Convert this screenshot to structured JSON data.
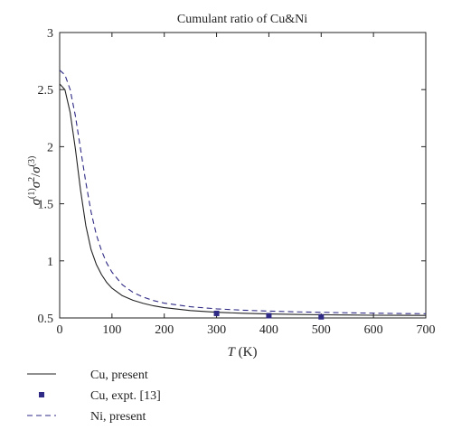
{
  "chart_data": {
    "type": "line",
    "title": "Cumulant ratio of Cu&Ni",
    "xlabel_italic": "T",
    "xlabel_unit": " (K)",
    "xlim": [
      0,
      700
    ],
    "ylim": [
      0.5,
      3
    ],
    "x_ticks": [
      0,
      100,
      200,
      300,
      400,
      500,
      600,
      700
    ],
    "y_ticks": [
      0.5,
      1,
      1.5,
      2,
      2.5,
      3
    ],
    "x_tick_labels": [
      "0",
      "100",
      "200",
      "300",
      "400",
      "500",
      "600",
      "700"
    ],
    "y_tick_labels": [
      "0.5",
      "1",
      "1.5",
      "2",
      "2.5",
      "3"
    ],
    "grid": false,
    "legend_position": "below",
    "series": [
      {
        "name": "Cu, present",
        "style": "solid",
        "color": "#222222",
        "x": [
          0,
          10,
          20,
          30,
          40,
          50,
          60,
          70,
          80,
          90,
          100,
          120,
          140,
          160,
          180,
          200,
          250,
          300,
          350,
          400,
          450,
          500,
          550,
          600,
          650,
          700
        ],
        "y": [
          2.55,
          2.5,
          2.3,
          1.98,
          1.62,
          1.31,
          1.1,
          0.97,
          0.88,
          0.81,
          0.76,
          0.695,
          0.655,
          0.627,
          0.606,
          0.59,
          0.565,
          0.55,
          0.541,
          0.535,
          0.531,
          0.528,
          0.526,
          0.524,
          0.523,
          0.522
        ]
      },
      {
        "name": "Cu, expt. [13]",
        "style": "marker",
        "color": "#2e2a85",
        "x": [
          300,
          400,
          500
        ],
        "y": [
          0.54,
          0.52,
          0.51
        ]
      },
      {
        "name": "Ni, present",
        "style": "dashed",
        "color": "#2e2a85",
        "x": [
          0,
          10,
          20,
          30,
          40,
          50,
          60,
          70,
          80,
          90,
          100,
          120,
          140,
          160,
          180,
          200,
          250,
          300,
          350,
          400,
          450,
          500,
          550,
          600,
          650,
          700
        ],
        "y": [
          2.67,
          2.63,
          2.5,
          2.27,
          1.98,
          1.69,
          1.43,
          1.23,
          1.09,
          0.98,
          0.9,
          0.79,
          0.725,
          0.682,
          0.652,
          0.63,
          0.598,
          0.58,
          0.568,
          0.56,
          0.554,
          0.549,
          0.545,
          0.542,
          0.539,
          0.537
        ]
      }
    ]
  }
}
